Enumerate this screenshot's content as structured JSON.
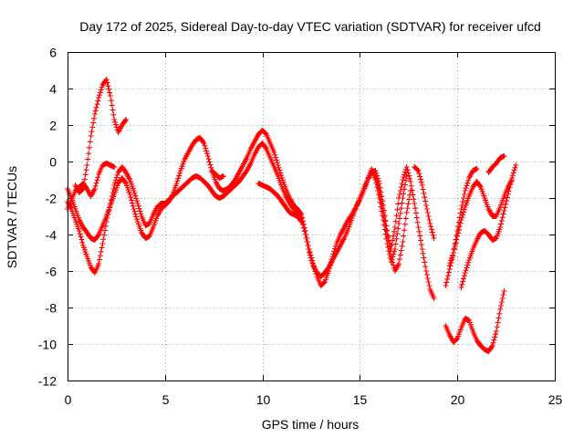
{
  "chart_data": {
    "type": "scatter",
    "title": "Day 172 of 2025, Sidereal Day-to-day VTEC variation (SDTVAR) for receiver ufcd",
    "xlabel": "GPS time / hours",
    "ylabel": "SDTVAR / TECUs",
    "xlim": [
      0,
      25
    ],
    "ylim": [
      -12,
      6
    ],
    "xticks": [
      "0",
      "5",
      "10",
      "15",
      "20",
      "25"
    ],
    "xtick_values": [
      0,
      5,
      10,
      15,
      20,
      25
    ],
    "yticks": [
      "-12",
      "-10",
      "-8",
      "-6",
      "-4",
      "-2",
      "0",
      "2",
      "4",
      "6"
    ],
    "ytick_values": [
      -12,
      -10,
      -8,
      -6,
      -4,
      -2,
      0,
      2,
      4,
      6
    ],
    "grid": true,
    "marker": "plus",
    "color": "#ff0000",
    "series": [
      {
        "name": "track-1",
        "points": [
          [
            0,
            -2.2
          ],
          [
            0.2,
            -2.6
          ],
          [
            0.4,
            -3.2
          ],
          [
            0.6,
            -3.8
          ],
          [
            0.8,
            -4.6
          ],
          [
            1.0,
            -5.2
          ],
          [
            1.2,
            -5.8
          ],
          [
            1.4,
            -6.1
          ],
          [
            1.6,
            -5.6
          ],
          [
            1.8,
            -4.5
          ],
          [
            2.0,
            -3.3
          ],
          [
            2.2,
            -2.3
          ],
          [
            2.4,
            -1.3
          ],
          [
            2.6,
            -0.6
          ],
          [
            2.8,
            -0.3
          ],
          [
            3.0,
            -0.6
          ],
          [
            3.2,
            -1.0
          ],
          [
            3.4,
            -1.6
          ],
          [
            3.6,
            -2.3
          ],
          [
            3.8,
            -3.0
          ],
          [
            4.0,
            -3.5
          ],
          [
            4.2,
            -3.4
          ],
          [
            4.4,
            -2.9
          ],
          [
            4.6,
            -2.5
          ],
          [
            4.8,
            -2.3
          ],
          [
            5.0,
            -2.3
          ],
          [
            5.2,
            -2.1
          ],
          [
            5.4,
            -1.9
          ],
          [
            5.6,
            -1.7
          ],
          [
            5.8,
            -1.5
          ],
          [
            6.0,
            -1.3
          ],
          [
            6.2,
            -1.1
          ],
          [
            6.4,
            -0.9
          ],
          [
            6.6,
            -0.8
          ],
          [
            6.8,
            -0.9
          ],
          [
            7.0,
            -1.1
          ],
          [
            7.2,
            -1.3
          ],
          [
            7.4,
            -1.6
          ],
          [
            7.6,
            -1.9
          ],
          [
            7.8,
            -2.0
          ],
          [
            8.0,
            -1.9
          ],
          [
            8.2,
            -1.7
          ],
          [
            8.4,
            -1.5
          ],
          [
            8.6,
            -1.3
          ],
          [
            8.8,
            -1.1
          ],
          [
            9.0,
            -0.8
          ],
          [
            9.2,
            -0.5
          ],
          [
            9.4,
            -0.1
          ],
          [
            9.6,
            0.4
          ],
          [
            9.8,
            0.8
          ],
          [
            10.0,
            1.0
          ],
          [
            10.2,
            0.7
          ],
          [
            10.4,
            0.2
          ],
          [
            10.6,
            -0.3
          ],
          [
            10.8,
            -0.8
          ],
          [
            11.0,
            -1.4
          ],
          [
            11.2,
            -1.9
          ],
          [
            11.4,
            -2.3
          ],
          [
            11.6,
            -2.6
          ],
          [
            11.8,
            -2.8
          ],
          [
            12.0,
            -3.1
          ],
          [
            12.2,
            -4.0
          ],
          [
            12.4,
            -5.0
          ],
          [
            12.6,
            -5.7
          ],
          [
            12.8,
            -6.1
          ],
          [
            13.0,
            -6.3
          ],
          [
            13.2,
            -6.1
          ],
          [
            13.4,
            -5.8
          ],
          [
            13.6,
            -5.4
          ],
          [
            13.8,
            -5.0
          ],
          [
            14.0,
            -4.6
          ],
          [
            14.2,
            -4.2
          ],
          [
            14.4,
            -3.7
          ],
          [
            14.6,
            -3.1
          ],
          [
            14.8,
            -2.5
          ],
          [
            15.0,
            -2.0
          ],
          [
            15.2,
            -1.5
          ],
          [
            15.4,
            -1.0
          ],
          [
            15.6,
            -0.6
          ],
          [
            15.8,
            -0.5
          ],
          [
            16.0,
            -1.2
          ],
          [
            16.2,
            -2.4
          ],
          [
            16.4,
            -3.8
          ],
          [
            16.6,
            -5.2
          ],
          [
            16.8,
            -6.0
          ],
          [
            17.0,
            -5.6
          ],
          [
            17.2,
            -4.4
          ],
          [
            17.4,
            -2.8
          ],
          [
            17.6,
            -1.6
          ]
        ]
      },
      {
        "name": "track-2",
        "points": [
          [
            0,
            -1.5
          ],
          [
            0.2,
            -2.0
          ],
          [
            0.4,
            -2.6
          ],
          [
            0.6,
            -3.2
          ],
          [
            0.8,
            -3.6
          ],
          [
            1.0,
            -3.9
          ],
          [
            1.2,
            -4.2
          ],
          [
            1.4,
            -4.3
          ],
          [
            1.6,
            -4.0
          ],
          [
            1.8,
            -3.5
          ],
          [
            2.0,
            -3.0
          ],
          [
            2.2,
            -2.4
          ],
          [
            2.4,
            -1.8
          ],
          [
            2.6,
            -1.2
          ],
          [
            2.8,
            -0.9
          ],
          [
            3.0,
            -1.2
          ],
          [
            3.2,
            -1.8
          ],
          [
            3.4,
            -2.6
          ],
          [
            3.6,
            -3.3
          ],
          [
            3.8,
            -3.9
          ],
          [
            4.0,
            -4.2
          ],
          [
            4.2,
            -4.1
          ],
          [
            4.4,
            -3.6
          ],
          [
            4.6,
            -3.0
          ],
          [
            4.8,
            -2.6
          ],
          [
            5.0,
            -2.4
          ],
          [
            5.2,
            -2.2
          ],
          [
            5.4,
            -1.8
          ],
          [
            5.6,
            -1.2
          ],
          [
            5.8,
            -0.5
          ],
          [
            6.0,
            0.1
          ],
          [
            6.2,
            0.5
          ],
          [
            6.4,
            0.9
          ],
          [
            6.6,
            1.2
          ],
          [
            6.8,
            1.3
          ],
          [
            7.0,
            1.0
          ],
          [
            7.2,
            0.3
          ],
          [
            7.4,
            -0.5
          ],
          [
            7.6,
            -1.1
          ],
          [
            7.8,
            -1.5
          ],
          [
            8.0,
            -1.6
          ],
          [
            8.2,
            -1.5
          ],
          [
            8.4,
            -1.3
          ],
          [
            8.6,
            -1.0
          ],
          [
            8.8,
            -0.6
          ],
          [
            9.0,
            -0.2
          ],
          [
            9.2,
            0.2
          ],
          [
            9.4,
            0.7
          ],
          [
            9.6,
            1.1
          ],
          [
            9.8,
            1.5
          ],
          [
            10.0,
            1.7
          ],
          [
            10.2,
            1.5
          ],
          [
            10.4,
            1.0
          ],
          [
            10.6,
            0.5
          ],
          [
            10.8,
            -0.2
          ],
          [
            11.0,
            -0.9
          ],
          [
            11.2,
            -1.5
          ],
          [
            11.4,
            -2.0
          ],
          [
            11.6,
            -2.4
          ],
          [
            11.8,
            -2.6
          ],
          [
            12.0,
            -2.9
          ],
          [
            12.2,
            -3.8
          ],
          [
            12.4,
            -4.8
          ],
          [
            12.6,
            -5.6
          ],
          [
            12.8,
            -6.3
          ],
          [
            13.0,
            -6.8
          ],
          [
            13.2,
            -6.6
          ],
          [
            13.4,
            -6.0
          ],
          [
            13.6,
            -5.2
          ],
          [
            13.8,
            -4.5
          ],
          [
            14.0,
            -4.0
          ],
          [
            14.2,
            -3.6
          ],
          [
            14.4,
            -3.2
          ],
          [
            14.6,
            -2.9
          ],
          [
            14.8,
            -2.5
          ],
          [
            15.0,
            -2.1
          ],
          [
            15.2,
            -1.6
          ],
          [
            15.4,
            -1.0
          ],
          [
            15.6,
            -0.4
          ],
          [
            15.8,
            -1.0
          ],
          [
            16.0,
            -2.0
          ],
          [
            16.2,
            -3.2
          ],
          [
            16.4,
            -4.5
          ],
          [
            16.6,
            -5.5
          ],
          [
            16.8,
            -4.8
          ],
          [
            17.0,
            -3.4
          ],
          [
            17.2,
            -2.0
          ],
          [
            17.4,
            -0.8
          ]
        ]
      },
      {
        "name": "track-3",
        "points": [
          [
            0.4,
            -1.3
          ],
          [
            0.6,
            -1.7
          ],
          [
            0.8,
            -1.5
          ],
          [
            1.0,
            -0.2
          ],
          [
            1.2,
            1.4
          ],
          [
            1.4,
            2.6
          ],
          [
            1.6,
            3.5
          ],
          [
            1.8,
            4.2
          ],
          [
            2.0,
            4.5
          ],
          [
            2.2,
            3.6
          ],
          [
            2.4,
            2.3
          ],
          [
            2.6,
            1.6
          ],
          [
            2.8,
            2.0
          ],
          [
            3.0,
            2.3
          ]
        ]
      },
      {
        "name": "track-4",
        "points": [
          [
            0,
            -2.6
          ],
          [
            0.2,
            -2.1
          ],
          [
            0.4,
            -1.6
          ],
          [
            0.6,
            -1.4
          ],
          [
            0.8,
            -1.2
          ],
          [
            1.0,
            -1.5
          ],
          [
            1.2,
            -1.9
          ],
          [
            1.4,
            -1.5
          ],
          [
            1.6,
            -0.7
          ],
          [
            1.8,
            -0.2
          ],
          [
            2.0,
            -0.1
          ],
          [
            2.2,
            -0.2
          ],
          [
            2.4,
            -0.3
          ]
        ]
      },
      {
        "name": "track-5",
        "points": [
          [
            7.4,
            -0.5
          ],
          [
            7.6,
            -0.7
          ],
          [
            7.8,
            -0.9
          ],
          [
            8.0,
            -0.8
          ]
        ]
      },
      {
        "name": "track-6",
        "points": [
          [
            9.8,
            -1.2
          ],
          [
            10.0,
            -1.3
          ],
          [
            10.2,
            -1.4
          ],
          [
            10.4,
            -1.5
          ],
          [
            10.6,
            -1.7
          ],
          [
            10.8,
            -1.9
          ],
          [
            11.0,
            -2.2
          ],
          [
            11.2,
            -2.5
          ],
          [
            11.4,
            -2.8
          ],
          [
            11.6,
            -2.9
          ],
          [
            11.8,
            -3.0
          ],
          [
            12.0,
            -3.3
          ]
        ]
      },
      {
        "name": "track-7",
        "points": [
          [
            15.8,
            -0.8
          ],
          [
            16.0,
            -1.6
          ],
          [
            16.2,
            -2.8
          ],
          [
            16.4,
            -4.0
          ],
          [
            16.6,
            -4.8
          ],
          [
            16.8,
            -3.6
          ],
          [
            17.0,
            -2.0
          ],
          [
            17.2,
            -1.0
          ],
          [
            17.4,
            -0.3
          ],
          [
            17.6,
            -1.1
          ],
          [
            17.8,
            -2.3
          ],
          [
            18.0,
            -3.6
          ],
          [
            18.2,
            -4.8
          ],
          [
            18.4,
            -6.0
          ],
          [
            18.6,
            -7.0
          ],
          [
            18.8,
            -7.5
          ]
        ]
      },
      {
        "name": "track-8",
        "points": [
          [
            17.8,
            -0.3
          ],
          [
            18.0,
            -0.5
          ],
          [
            18.2,
            -1.3
          ],
          [
            18.4,
            -2.4
          ],
          [
            18.6,
            -3.4
          ],
          [
            18.8,
            -4.2
          ]
        ]
      },
      {
        "name": "track-9",
        "points": [
          [
            19.4,
            -6.8
          ],
          [
            19.6,
            -5.9
          ],
          [
            19.8,
            -5.0
          ],
          [
            20.0,
            -4.1
          ],
          [
            20.2,
            -3.2
          ],
          [
            20.4,
            -2.5
          ],
          [
            20.6,
            -1.9
          ],
          [
            20.8,
            -1.4
          ],
          [
            21.0,
            -1.1
          ],
          [
            21.2,
            -1.4
          ],
          [
            21.4,
            -2.0
          ],
          [
            21.6,
            -2.6
          ],
          [
            21.8,
            -3.0
          ],
          [
            22.0,
            -3.0
          ],
          [
            22.2,
            -2.5
          ],
          [
            22.4,
            -1.9
          ],
          [
            22.6,
            -1.4
          ],
          [
            22.8,
            -1.0
          ]
        ]
      },
      {
        "name": "track-10",
        "points": [
          [
            19.6,
            -5.7
          ],
          [
            19.8,
            -5.0
          ],
          [
            20.0,
            -3.8
          ],
          [
            20.2,
            -2.6
          ],
          [
            20.4,
            -1.6
          ],
          [
            20.6,
            -0.9
          ],
          [
            20.8,
            -0.5
          ],
          [
            21.0,
            -0.4
          ]
        ]
      },
      {
        "name": "track-11",
        "points": [
          [
            20.2,
            -6.9
          ],
          [
            20.4,
            -6.1
          ],
          [
            20.6,
            -5.4
          ],
          [
            20.8,
            -4.8
          ],
          [
            21.0,
            -4.3
          ],
          [
            21.2,
            -3.9
          ],
          [
            21.4,
            -3.8
          ],
          [
            21.6,
            -4.0
          ],
          [
            21.8,
            -4.3
          ],
          [
            22.0,
            -4.2
          ],
          [
            22.2,
            -3.6
          ],
          [
            22.4,
            -2.7
          ],
          [
            22.6,
            -1.8
          ],
          [
            22.8,
            -0.9
          ],
          [
            23.0,
            -0.2
          ]
        ]
      },
      {
        "name": "track-12",
        "points": [
          [
            21.6,
            -0.6
          ],
          [
            21.8,
            -0.3
          ],
          [
            22.0,
            -0.1
          ],
          [
            22.2,
            0.2
          ],
          [
            22.4,
            0.3
          ]
        ]
      },
      {
        "name": "track-13",
        "points": [
          [
            19.4,
            -9.0
          ],
          [
            19.6,
            -9.5
          ],
          [
            19.8,
            -9.9
          ],
          [
            20.0,
            -9.7
          ],
          [
            20.2,
            -9.1
          ],
          [
            20.4,
            -8.6
          ],
          [
            20.6,
            -8.7
          ],
          [
            20.8,
            -9.3
          ],
          [
            21.0,
            -9.8
          ],
          [
            21.2,
            -10.1
          ],
          [
            21.4,
            -10.3
          ],
          [
            21.6,
            -10.4
          ],
          [
            21.8,
            -10.1
          ],
          [
            22.0,
            -9.3
          ],
          [
            22.2,
            -8.1
          ],
          [
            22.4,
            -7.1
          ]
        ]
      }
    ]
  }
}
